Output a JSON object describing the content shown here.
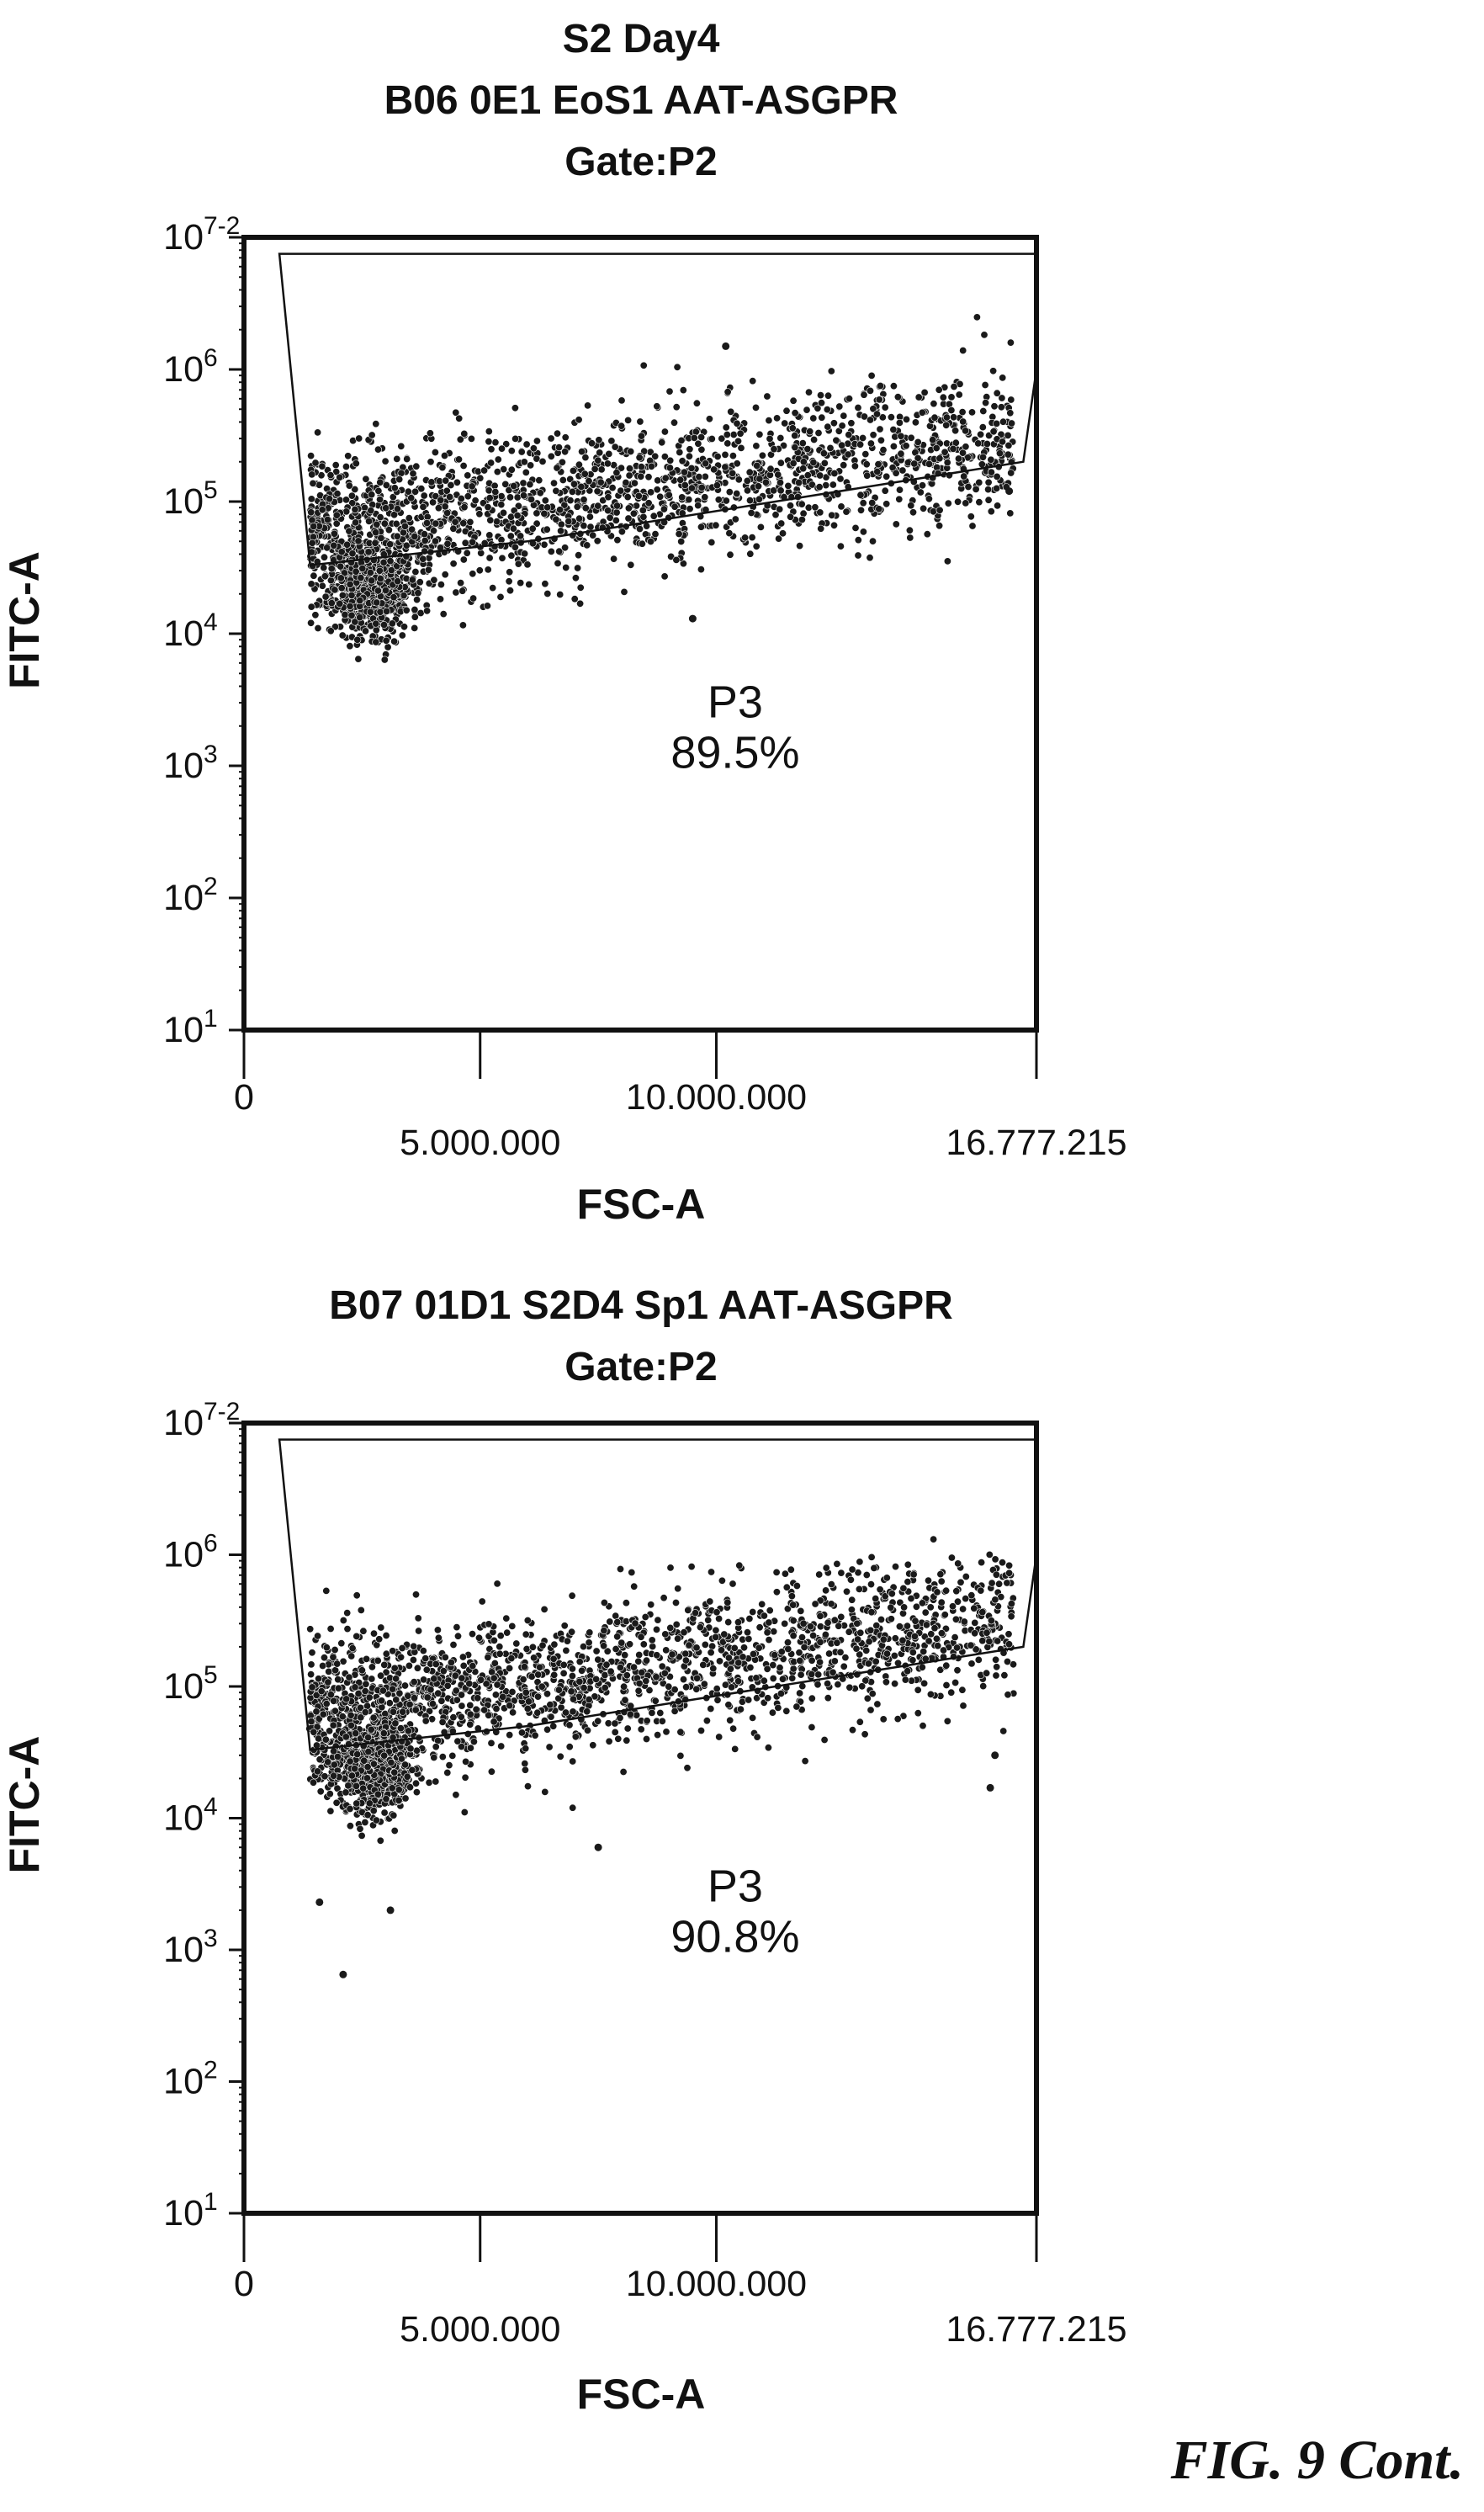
{
  "figure_caption": "FIG. 9 Cont.",
  "chart_data": [
    {
      "type": "scatter",
      "title_lines": [
        "S2 Day4",
        "B06 0E1 EoS1 AAT-ASGPR",
        "Gate:P2"
      ],
      "xlabel": "FSC-A",
      "ylabel": "FITC-A",
      "xlim": [
        0,
        16777215
      ],
      "ylim": [
        10,
        10000000
      ],
      "yscale": "log",
      "x_ticks": [
        {
          "value": 0,
          "label": "0",
          "row": 1
        },
        {
          "value": 5000000,
          "label": "5.000.000",
          "row": 2
        },
        {
          "value": 10000000,
          "label": "10.000.000",
          "row": 1
        },
        {
          "value": 16777215,
          "label": "16.777.215",
          "row": 2
        }
      ],
      "y_ticks": [
        {
          "value": 10,
          "base": "10",
          "exp": "1"
        },
        {
          "value": 100,
          "base": "10",
          "exp": "2"
        },
        {
          "value": 1000,
          "base": "10",
          "exp": "3"
        },
        {
          "value": 10000,
          "base": "10",
          "exp": "4"
        },
        {
          "value": 100000,
          "base": "10",
          "exp": "5"
        },
        {
          "value": 1000000,
          "base": "10",
          "exp": "6"
        },
        {
          "value": 10000000,
          "base": "10",
          "exp": "7-2"
        }
      ],
      "gate": {
        "name": "P3",
        "percent": "89.5%",
        "label_position": {
          "x": 10400000,
          "y": 1500
        },
        "polygon": [
          [
            750000,
            7500000
          ],
          [
            16777215,
            7500000
          ],
          [
            16777215,
            1000000
          ],
          [
            16500000,
            200000
          ],
          [
            6000000,
            50000
          ],
          [
            1400000,
            33000
          ]
        ]
      },
      "population": {
        "n_points": 2600,
        "seed": 11,
        "dense_core": {
          "x_mean": 2700000,
          "x_sd": 700000,
          "log10y_mean": 4.35,
          "log10y_sd": 0.18,
          "weight": 0.28
        },
        "main_cloud": {
          "x_min": 1400000,
          "x_max": 16300000,
          "log10y_start": 4.75,
          "log10y_end": 5.45,
          "log10y_sd": 0.28,
          "weight": 0.72
        },
        "outliers": [
          [
            9500000,
            13000
          ],
          [
            10200000,
            1500000
          ],
          [
            16200000,
            120000
          ]
        ]
      }
    },
    {
      "type": "scatter",
      "title_lines": [
        "B07 01D1 S2D4 Sp1 AAT-ASGPR",
        "Gate:P2"
      ],
      "xlabel": "FSC-A",
      "ylabel": "FITC-A",
      "xlim": [
        0,
        16777215
      ],
      "ylim": [
        10,
        10000000
      ],
      "yscale": "log",
      "x_ticks": [
        {
          "value": 0,
          "label": "0",
          "row": 1
        },
        {
          "value": 5000000,
          "label": "5.000.000",
          "row": 2
        },
        {
          "value": 10000000,
          "label": "10.000.000",
          "row": 1
        },
        {
          "value": 16777215,
          "label": "16.777.215",
          "row": 2
        }
      ],
      "y_ticks": [
        {
          "value": 10,
          "base": "10",
          "exp": "1"
        },
        {
          "value": 100,
          "base": "10",
          "exp": "2"
        },
        {
          "value": 1000,
          "base": "10",
          "exp": "3"
        },
        {
          "value": 10000,
          "base": "10",
          "exp": "4"
        },
        {
          "value": 100000,
          "base": "10",
          "exp": "5"
        },
        {
          "value": 1000000,
          "base": "10",
          "exp": "6"
        },
        {
          "value": 10000000,
          "base": "10",
          "exp": "7-2"
        }
      ],
      "gate": {
        "name": "P3",
        "percent": "90.8%",
        "label_position": {
          "x": 10400000,
          "y": 1500
        },
        "polygon": [
          [
            750000,
            7500000
          ],
          [
            16777215,
            7500000
          ],
          [
            16777215,
            1000000
          ],
          [
            16500000,
            200000
          ],
          [
            6000000,
            50000
          ],
          [
            1400000,
            33000
          ]
        ]
      },
      "population": {
        "n_points": 2700,
        "seed": 23,
        "dense_core": {
          "x_mean": 2700000,
          "x_sd": 700000,
          "log10y_mean": 4.4,
          "log10y_sd": 0.18,
          "weight": 0.28
        },
        "main_cloud": {
          "x_min": 1400000,
          "x_max": 16300000,
          "log10y_start": 4.8,
          "log10y_end": 5.5,
          "log10y_sd": 0.28,
          "weight": 0.72
        },
        "outliers": [
          [
            1600000,
            2300
          ],
          [
            2100000,
            650
          ],
          [
            3100000,
            2000
          ],
          [
            7500000,
            6000
          ],
          [
            15800000,
            17000
          ],
          [
            15900000,
            30000
          ]
        ]
      }
    }
  ]
}
